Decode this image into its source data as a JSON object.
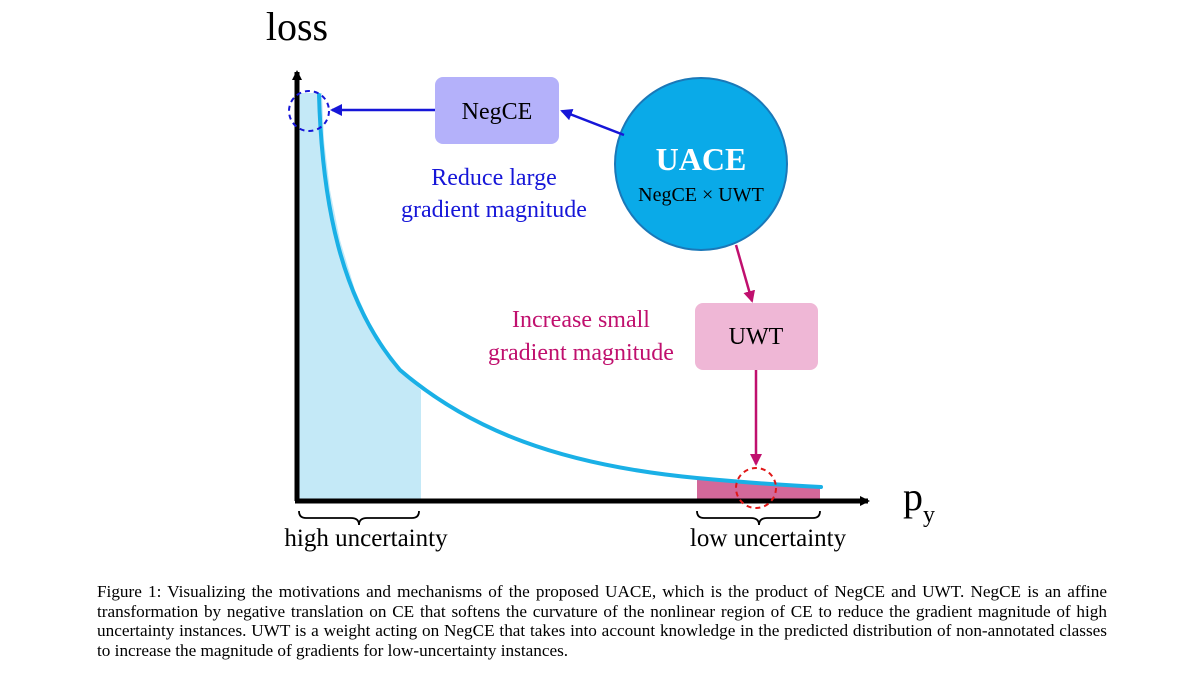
{
  "axes": {
    "y_label": "loss",
    "x_label_main": "p",
    "x_label_sub": "y"
  },
  "regions": {
    "high": "high uncertainty",
    "low": "low uncertainty"
  },
  "uace": {
    "title": "UACE",
    "formula": "NegCE × UWT"
  },
  "negce": {
    "label": "NegCE"
  },
  "uwt": {
    "label": "UWT"
  },
  "annotations": {
    "reduce_line1": "Reduce large",
    "reduce_line2": "gradient magnitude",
    "increase_line1": "Increase small",
    "increase_line2": "gradient magnitude"
  },
  "caption": "Figure 1: Visualizing the motivations and mechanisms of the proposed UACE, which is the product of NegCE and UWT. NegCE is an affine transformation by negative translation on CE that softens the curvature of the nonlinear region of CE to reduce the gradient magnitude of high uncertainty instances. UWT is a weight acting on NegCE that takes into account knowledge in the predicted distribution of non-annotated classes to increase the magnitude of gradients for low-uncertainty instances.",
  "colors": {
    "curve": "#1ab0e6",
    "high_fill": "#c4e9f7",
    "low_fill": "#d3689a",
    "negce_box": "#b4b1fa",
    "uwt_box": "#efb7d6",
    "uace_circle": "#0aaae8",
    "blue_text": "#1616d8",
    "magenta_text": "#c0106e"
  }
}
